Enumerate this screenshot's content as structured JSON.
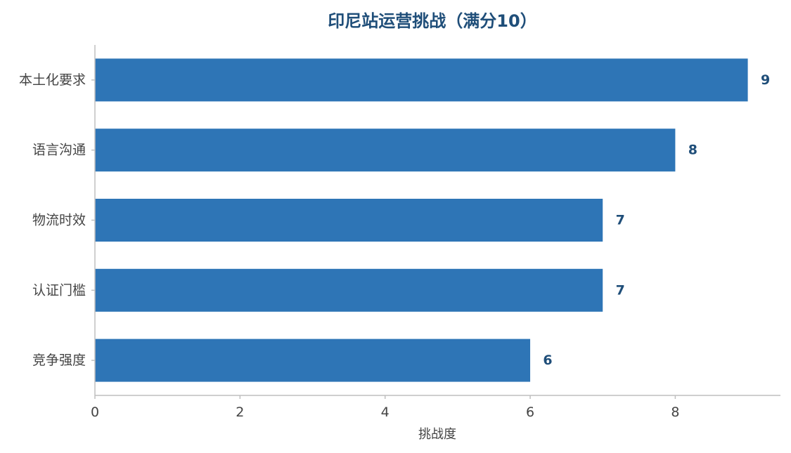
{
  "chart_data": {
    "type": "bar",
    "orientation": "horizontal",
    "title": "印尼站运营挑战（满分10）",
    "categories": [
      "本土化要求",
      "语言沟通",
      "物流时效",
      "认证门槛",
      "竞争强度"
    ],
    "values": [
      9,
      8,
      7,
      7,
      6
    ],
    "xlabel": "挑战度",
    "ylabel": "",
    "xlim": [
      0,
      9.45
    ],
    "xticks": [
      0,
      2,
      4,
      6,
      8
    ],
    "grid": false,
    "legend": "none",
    "show_value_labels": true
  },
  "colors": {
    "bar": "#2e75b6",
    "title": "#1f4e79",
    "value_label": "#1f4e79",
    "text": "#444444",
    "axis": "#bfbfbf"
  }
}
